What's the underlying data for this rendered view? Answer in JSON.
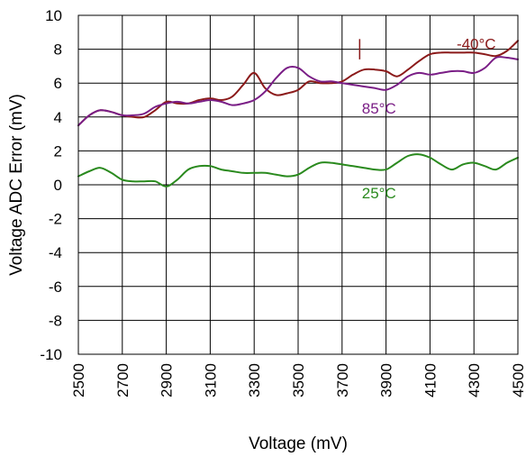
{
  "chart_data": {
    "type": "line",
    "title": "",
    "xlabel": "Voltage (mV)",
    "ylabel": "Voltage ADC Error (mV)",
    "xlim": [
      2500,
      4500
    ],
    "ylim": [
      -10,
      10
    ],
    "x_ticks": [
      2500,
      2700,
      2900,
      3100,
      3300,
      3500,
      3700,
      3900,
      4100,
      4300,
      4500
    ],
    "y_ticks": [
      10,
      8,
      6,
      4,
      2,
      0,
      -2,
      -4,
      -6,
      -8,
      -10
    ],
    "grid": true,
    "legend": "none (series labeled inline)",
    "series": [
      {
        "name": "-40°C",
        "color": "#8B1A1A",
        "x": [
          2500,
          2550,
          2600,
          2650,
          2700,
          2750,
          2800,
          2850,
          2900,
          2950,
          3000,
          3050,
          3100,
          3150,
          3200,
          3250,
          3300,
          3350,
          3400,
          3450,
          3500,
          3550,
          3600,
          3650,
          3700,
          3750,
          3800,
          3850,
          3900,
          3950,
          4000,
          4050,
          4100,
          4150,
          4200,
          4250,
          4300,
          4350,
          4400,
          4450,
          4500
        ],
        "y": [
          3.5,
          4.1,
          4.4,
          4.3,
          4.1,
          4.0,
          4.0,
          4.4,
          4.9,
          4.8,
          4.8,
          5.0,
          5.1,
          5.0,
          5.2,
          5.9,
          6.6,
          5.7,
          5.3,
          5.4,
          5.6,
          6.1,
          6.0,
          6.0,
          6.1,
          6.5,
          6.8,
          6.8,
          6.7,
          6.4,
          6.8,
          7.3,
          7.7,
          7.8,
          7.8,
          7.8,
          7.8,
          7.7,
          7.6,
          7.9,
          8.5
        ]
      },
      {
        "name": "85°C",
        "color": "#7A1E86",
        "x": [
          2500,
          2550,
          2600,
          2650,
          2700,
          2750,
          2800,
          2850,
          2900,
          2950,
          3000,
          3050,
          3100,
          3150,
          3200,
          3250,
          3300,
          3350,
          3400,
          3450,
          3500,
          3550,
          3600,
          3650,
          3700,
          3750,
          3800,
          3850,
          3900,
          3950,
          4000,
          4050,
          4100,
          4150,
          4200,
          4250,
          4300,
          4350,
          4400,
          4450,
          4500
        ],
        "y": [
          3.5,
          4.1,
          4.4,
          4.3,
          4.1,
          4.1,
          4.2,
          4.6,
          4.8,
          4.9,
          4.8,
          4.9,
          5.0,
          4.9,
          4.7,
          4.8,
          5.0,
          5.5,
          6.3,
          6.9,
          6.9,
          6.4,
          6.1,
          6.1,
          6.0,
          5.9,
          5.8,
          5.7,
          5.6,
          5.9,
          6.4,
          6.6,
          6.5,
          6.6,
          6.7,
          6.7,
          6.6,
          6.9,
          7.5,
          7.5,
          7.4
        ]
      },
      {
        "name": "25°C",
        "color": "#2A8A1E",
        "x": [
          2500,
          2550,
          2600,
          2650,
          2700,
          2750,
          2800,
          2850,
          2900,
          2950,
          3000,
          3050,
          3100,
          3150,
          3200,
          3250,
          3300,
          3350,
          3400,
          3450,
          3500,
          3550,
          3600,
          3650,
          3700,
          3750,
          3800,
          3850,
          3900,
          3950,
          4000,
          4050,
          4100,
          4150,
          4200,
          4250,
          4300,
          4350,
          4400,
          4450,
          4500
        ],
        "y": [
          0.5,
          0.8,
          1.0,
          0.7,
          0.3,
          0.2,
          0.2,
          0.2,
          -0.1,
          0.3,
          0.9,
          1.1,
          1.1,
          0.9,
          0.8,
          0.7,
          0.7,
          0.7,
          0.6,
          0.5,
          0.6,
          1.0,
          1.3,
          1.3,
          1.2,
          1.1,
          1.0,
          0.9,
          0.9,
          1.3,
          1.7,
          1.8,
          1.6,
          1.2,
          0.9,
          1.2,
          1.3,
          1.1,
          0.9,
          1.3,
          1.6
        ]
      }
    ],
    "annotations": [
      {
        "text": "-40°C",
        "series": "-40°C"
      },
      {
        "text": "85°C",
        "series": "85°C"
      },
      {
        "text": "25°C",
        "series": "25°C"
      }
    ]
  }
}
